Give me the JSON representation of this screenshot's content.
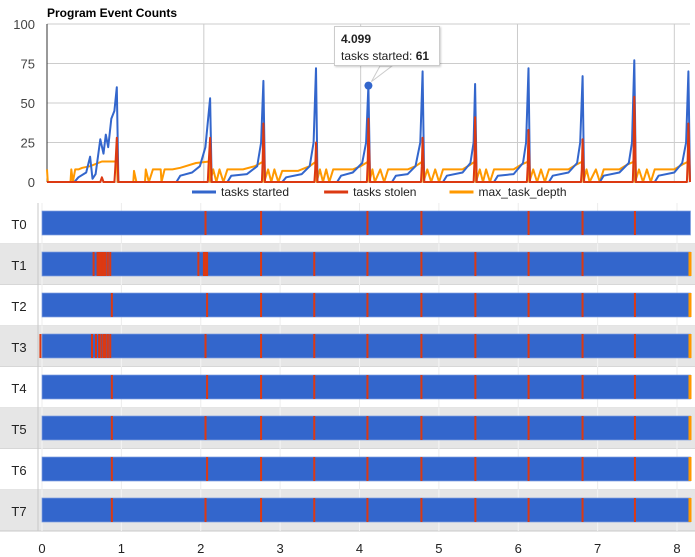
{
  "chart_data": [
    {
      "type": "line",
      "title": "Program Event Counts",
      "xlim": [
        0,
        8.2
      ],
      "ylim": [
        0,
        100
      ],
      "yticks": [
        0,
        25,
        50,
        75,
        100
      ],
      "xgrid": [
        0,
        2,
        4,
        6,
        8
      ],
      "grid": true,
      "legend": "bottom",
      "series": [
        {
          "name": "tasks started",
          "color": "#3366cc",
          "points": [
            [
              0,
              0
            ],
            [
              0.35,
              0
            ],
            [
              0.4,
              3
            ],
            [
              0.5,
              6
            ],
            [
              0.55,
              16
            ],
            [
              0.58,
              2
            ],
            [
              0.62,
              5
            ],
            [
              0.68,
              27
            ],
            [
              0.72,
              18
            ],
            [
              0.75,
              30
            ],
            [
              0.78,
              22
            ],
            [
              0.82,
              40
            ],
            [
              0.86,
              45
            ],
            [
              0.89,
              60
            ],
            [
              0.91,
              0
            ],
            [
              1.65,
              0
            ],
            [
              1.7,
              4
            ],
            [
              1.85,
              6
            ],
            [
              1.95,
              10
            ],
            [
              2.02,
              22
            ],
            [
              2.08,
              53
            ],
            [
              2.1,
              0
            ],
            [
              2.3,
              0
            ],
            [
              2.35,
              4
            ],
            [
              2.55,
              5
            ],
            [
              2.68,
              10
            ],
            [
              2.73,
              25
            ],
            [
              2.76,
              64
            ],
            [
              2.78,
              0
            ],
            [
              3.0,
              0
            ],
            [
              3.05,
              3
            ],
            [
              3.25,
              5
            ],
            [
              3.35,
              10
            ],
            [
              3.4,
              25
            ],
            [
              3.43,
              72
            ],
            [
              3.45,
              0
            ],
            [
              3.7,
              0
            ],
            [
              3.75,
              4
            ],
            [
              3.9,
              6
            ],
            [
              4.02,
              12
            ],
            [
              4.07,
              25
            ],
            [
              4.099,
              61
            ],
            [
              4.12,
              0
            ],
            [
              4.4,
              0
            ],
            [
              4.45,
              4
            ],
            [
              4.6,
              5
            ],
            [
              4.7,
              10
            ],
            [
              4.76,
              25
            ],
            [
              4.79,
              70
            ],
            [
              4.81,
              0
            ],
            [
              5.05,
              0
            ],
            [
              5.1,
              4
            ],
            [
              5.3,
              6
            ],
            [
              5.4,
              12
            ],
            [
              5.44,
              25
            ],
            [
              5.46,
              62
            ],
            [
              5.48,
              0
            ],
            [
              5.7,
              0
            ],
            [
              5.75,
              4
            ],
            [
              5.95,
              5
            ],
            [
              6.07,
              12
            ],
            [
              6.11,
              25
            ],
            [
              6.14,
              72
            ],
            [
              6.16,
              0
            ],
            [
              6.4,
              0
            ],
            [
              6.45,
              4
            ],
            [
              6.65,
              6
            ],
            [
              6.76,
              12
            ],
            [
              6.8,
              25
            ],
            [
              6.83,
              67
            ],
            [
              6.85,
              0
            ],
            [
              7.05,
              0
            ],
            [
              7.1,
              4
            ],
            [
              7.3,
              6
            ],
            [
              7.42,
              12
            ],
            [
              7.46,
              25
            ],
            [
              7.49,
              77
            ],
            [
              7.51,
              0
            ],
            [
              7.75,
              0
            ],
            [
              7.8,
              4
            ],
            [
              8.0,
              6
            ],
            [
              8.1,
              12
            ],
            [
              8.15,
              25
            ],
            [
              8.18,
              70
            ],
            [
              8.2,
              0
            ]
          ]
        },
        {
          "name": "tasks stolen",
          "color": "#dc3912",
          "points": [
            [
              0,
              0
            ],
            [
              0.68,
              0
            ],
            [
              0.7,
              3
            ],
            [
              0.72,
              0
            ],
            [
              0.86,
              0
            ],
            [
              0.87,
              8
            ],
            [
              0.89,
              28
            ],
            [
              0.91,
              0
            ],
            [
              2.05,
              0
            ],
            [
              2.06,
              10
            ],
            [
              2.08,
              28
            ],
            [
              2.1,
              0
            ],
            [
              2.74,
              0
            ],
            [
              2.75,
              12
            ],
            [
              2.76,
              37
            ],
            [
              2.78,
              0
            ],
            [
              3.41,
              0
            ],
            [
              3.42,
              8
            ],
            [
              3.43,
              25
            ],
            [
              3.45,
              0
            ],
            [
              4.08,
              0
            ],
            [
              4.09,
              12
            ],
            [
              4.099,
              40
            ],
            [
              4.12,
              0
            ],
            [
              4.77,
              0
            ],
            [
              4.78,
              10
            ],
            [
              4.79,
              28
            ],
            [
              4.81,
              0
            ],
            [
              5.44,
              0
            ],
            [
              5.45,
              12
            ],
            [
              5.46,
              41
            ],
            [
              5.48,
              0
            ],
            [
              6.12,
              0
            ],
            [
              6.13,
              10
            ],
            [
              6.14,
              33
            ],
            [
              6.16,
              0
            ],
            [
              6.81,
              0
            ],
            [
              6.82,
              8
            ],
            [
              6.83,
              27
            ],
            [
              6.85,
              0
            ],
            [
              7.47,
              0
            ],
            [
              7.48,
              15
            ],
            [
              7.49,
              54
            ],
            [
              7.51,
              0
            ],
            [
              8.16,
              0
            ],
            [
              8.17,
              12
            ],
            [
              8.18,
              37
            ],
            [
              8.2,
              0
            ]
          ]
        },
        {
          "name": "max_task_depth",
          "color": "#ff9900",
          "points": [
            [
              0,
              8
            ],
            [
              0.01,
              0
            ],
            [
              0.3,
              0
            ],
            [
              0.31,
              8
            ],
            [
              0.33,
              0
            ],
            [
              0.36,
              8
            ],
            [
              0.4,
              8
            ],
            [
              0.45,
              9
            ],
            [
              0.55,
              10
            ],
            [
              0.7,
              13
            ],
            [
              0.85,
              13
            ],
            [
              0.89,
              13
            ],
            [
              0.9,
              0
            ],
            [
              1.1,
              0
            ],
            [
              1.11,
              7
            ],
            [
              1.14,
              0
            ],
            [
              1.25,
              0
            ],
            [
              1.26,
              8
            ],
            [
              1.3,
              0
            ],
            [
              1.35,
              8
            ],
            [
              1.45,
              8
            ],
            [
              1.46,
              0
            ],
            [
              1.5,
              8
            ],
            [
              1.6,
              8
            ],
            [
              1.7,
              9
            ],
            [
              1.9,
              12
            ],
            [
              2.07,
              13
            ],
            [
              2.08,
              0
            ],
            [
              2.12,
              8
            ],
            [
              2.16,
              0
            ],
            [
              2.2,
              8
            ],
            [
              2.25,
              0
            ],
            [
              2.3,
              8
            ],
            [
              2.5,
              8
            ],
            [
              2.65,
              10
            ],
            [
              2.76,
              13
            ],
            [
              2.77,
              0
            ],
            [
              2.82,
              8
            ],
            [
              2.86,
              0
            ],
            [
              2.9,
              8
            ],
            [
              2.95,
              0
            ],
            [
              3.0,
              7
            ],
            [
              3.2,
              7
            ],
            [
              3.35,
              10
            ],
            [
              3.43,
              13
            ],
            [
              3.44,
              0
            ],
            [
              3.48,
              8
            ],
            [
              3.52,
              0
            ],
            [
              3.56,
              8
            ],
            [
              3.6,
              0
            ],
            [
              3.65,
              8
            ],
            [
              3.9,
              8
            ],
            [
              4.0,
              10
            ],
            [
              4.099,
              13
            ],
            [
              4.11,
              0
            ],
            [
              4.15,
              8
            ],
            [
              4.18,
              0
            ],
            [
              4.25,
              8
            ],
            [
              4.3,
              0
            ],
            [
              4.35,
              8
            ],
            [
              4.6,
              8
            ],
            [
              4.7,
              10
            ],
            [
              4.79,
              13
            ],
            [
              4.8,
              0
            ],
            [
              4.85,
              8
            ],
            [
              4.9,
              0
            ],
            [
              4.95,
              8
            ],
            [
              5.0,
              0
            ],
            [
              5.05,
              8
            ],
            [
              5.3,
              8
            ],
            [
              5.4,
              11
            ],
            [
              5.46,
              13
            ],
            [
              5.47,
              0
            ],
            [
              5.52,
              8
            ],
            [
              5.56,
              0
            ],
            [
              5.6,
              8
            ],
            [
              5.65,
              0
            ],
            [
              5.7,
              8
            ],
            [
              5.95,
              8
            ],
            [
              6.05,
              11
            ],
            [
              6.14,
              13
            ],
            [
              6.15,
              0
            ],
            [
              6.2,
              8
            ],
            [
              6.25,
              0
            ],
            [
              6.3,
              8
            ],
            [
              6.35,
              0
            ],
            [
              6.4,
              8
            ],
            [
              6.65,
              8
            ],
            [
              6.75,
              11
            ],
            [
              6.83,
              13
            ],
            [
              6.84,
              0
            ],
            [
              6.88,
              8
            ],
            [
              6.92,
              0
            ],
            [
              7.0,
              8
            ],
            [
              7.05,
              0
            ],
            [
              7.1,
              8
            ],
            [
              7.3,
              8
            ],
            [
              7.4,
              11
            ],
            [
              7.49,
              13
            ],
            [
              7.5,
              0
            ],
            [
              7.55,
              8
            ],
            [
              7.6,
              0
            ],
            [
              7.65,
              8
            ],
            [
              7.7,
              0
            ],
            [
              7.75,
              8
            ],
            [
              8.0,
              8
            ],
            [
              8.1,
              11
            ],
            [
              8.18,
              13
            ],
            [
              8.2,
              0
            ]
          ]
        }
      ],
      "tooltip": {
        "x_label": "4.099",
        "series_label": "tasks started:",
        "value": "61",
        "x": 4.099,
        "y": 61
      }
    },
    {
      "type": "timeline",
      "xlim": [
        0,
        8.2
      ],
      "xticks": [
        "0",
        "1",
        "2",
        "3",
        "4",
        "5",
        "6",
        "7",
        "8"
      ],
      "bar_color": "#3366cc",
      "mark_color": "#dc3912",
      "end_color": "#ff9900",
      "threads": [
        {
          "label": "T0",
          "end": 8.17,
          "end_mark": false,
          "marks": [
            2.06,
            2.76,
            4.1,
            4.78,
            6.13,
            6.81,
            7.47
          ]
        },
        {
          "label": "T1",
          "end": 8.17,
          "end_mark": true,
          "marks": [
            0.65,
            0.7,
            0.72,
            0.74,
            0.76,
            0.78,
            0.8,
            0.83,
            0.86,
            1.97,
            2.04,
            2.06,
            2.08,
            2.76,
            3.43,
            4.1,
            4.78,
            5.46,
            6.13,
            6.81
          ]
        },
        {
          "label": "T2",
          "end": 8.17,
          "end_mark": true,
          "marks": [
            0.88,
            2.08,
            2.76,
            3.43,
            4.1,
            4.78,
            5.46,
            6.13,
            6.81,
            7.47
          ]
        },
        {
          "label": "T3",
          "end": 8.17,
          "end_mark": true,
          "marks": [
            -0.02,
            0.63,
            0.68,
            0.72,
            0.75,
            0.78,
            0.8,
            0.83,
            0.86,
            2.06,
            2.76,
            3.43,
            4.1,
            4.78,
            5.46,
            6.13,
            6.81,
            7.47
          ]
        },
        {
          "label": "T4",
          "end": 8.17,
          "end_mark": true,
          "marks": [
            0.88,
            2.08,
            2.76,
            3.43,
            4.1,
            4.78,
            5.46,
            6.13,
            6.81,
            7.47
          ]
        },
        {
          "label": "T5",
          "end": 8.17,
          "end_mark": true,
          "marks": [
            0.88,
            2.06,
            2.76,
            3.43,
            4.1,
            4.78,
            5.46,
            6.13,
            6.81,
            7.47
          ]
        },
        {
          "label": "T6",
          "end": 8.17,
          "end_mark": true,
          "marks": [
            0.88,
            2.08,
            2.76,
            3.43,
            4.1,
            4.78,
            5.46,
            6.13,
            6.81,
            7.47
          ]
        },
        {
          "label": "T7",
          "end": 8.17,
          "end_mark": true,
          "marks": [
            0.88,
            2.06,
            2.76,
            3.43,
            4.1,
            4.78,
            5.46,
            6.13,
            6.81,
            7.47
          ]
        }
      ]
    }
  ]
}
